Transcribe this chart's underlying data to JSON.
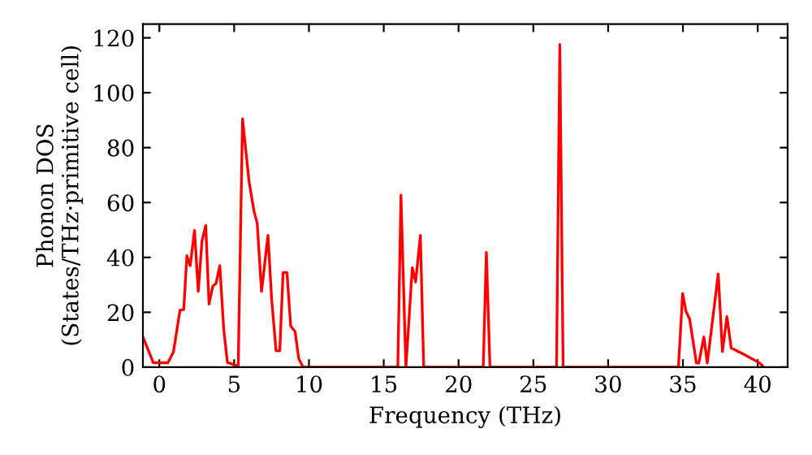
{
  "chart_data": {
    "type": "line",
    "xlabel": "Frequency (THz)",
    "ylabel": "Phonon DOS\n(States/THz·primitive cell)",
    "xlim": [
      -1.1,
      42
    ],
    "ylim": [
      0,
      125
    ],
    "xticks": [
      0,
      5,
      10,
      15,
      20,
      25,
      30,
      35,
      40
    ],
    "yticks": [
      0,
      20,
      40,
      60,
      80,
      100,
      120
    ],
    "grid": false,
    "legend": false,
    "marker": "none",
    "line_style": "solid",
    "series": [
      {
        "color": "#ff0000",
        "x": [
          -1.05,
          -0.4,
          0.57,
          0.94,
          1.38,
          1.63,
          1.84,
          2.06,
          2.35,
          2.6,
          2.85,
          3.1,
          3.32,
          3.57,
          3.79,
          4.04,
          4.3,
          4.55,
          5.27,
          5.56,
          5.99,
          6.32,
          6.54,
          6.83,
          7.26,
          7.51,
          7.8,
          8.05,
          8.27,
          8.53,
          8.78,
          9.07,
          9.32,
          9.61,
          15.94,
          16.15,
          16.48,
          16.91,
          17.13,
          17.45,
          17.67,
          21.65,
          21.86,
          22.1,
          26.55,
          26.77,
          26.99,
          34.7,
          34.98,
          35.2,
          35.45,
          35.9,
          36.06,
          36.4,
          36.63,
          37.36,
          37.64,
          37.94,
          38.23,
          39.06,
          40.14,
          40.4
        ],
        "values": [
          10.4,
          1.6,
          1.6,
          5.5,
          20.8,
          21,
          40.6,
          37,
          49.8,
          27.6,
          46,
          51.6,
          23,
          29.5,
          30.5,
          37,
          14,
          1.7,
          0.4,
          90.5,
          67.9,
          57,
          52.5,
          27.6,
          48,
          24.5,
          6,
          6,
          34.5,
          34.5,
          15,
          13,
          3.1,
          0,
          0,
          62.7,
          0,
          36.3,
          31,
          48,
          0,
          0,
          41.8,
          0,
          0,
          117.6,
          0,
          0,
          26.9,
          20.4,
          17.5,
          1.5,
          1.5,
          11,
          1.5,
          34,
          5.7,
          18.4,
          7,
          4.7,
          1.5,
          0
        ]
      }
    ]
  }
}
